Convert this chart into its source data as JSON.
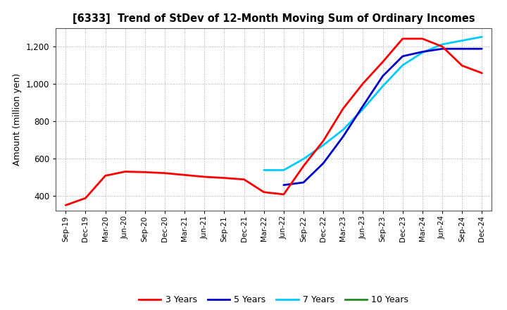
{
  "title": "[6333]  Trend of StDev of 12-Month Moving Sum of Ordinary Incomes",
  "ylabel": "Amount (million yen)",
  "background_color": "#ffffff",
  "grid_color": "#aaaaaa",
  "line_colors": {
    "3 Years": "#ff0000",
    "5 Years": "#0000cc",
    "7 Years": "#00ccff",
    "10 Years": "#228B22"
  },
  "ylim": [
    320,
    1300
  ],
  "yticks": [
    400,
    600,
    800,
    1000,
    1200
  ],
  "x_labels": [
    "Sep-19",
    "Dec-19",
    "Mar-20",
    "Jun-20",
    "Sep-20",
    "Dec-20",
    "Mar-21",
    "Jun-21",
    "Sep-21",
    "Dec-21",
    "Mar-22",
    "Jun-22",
    "Sep-22",
    "Dec-22",
    "Mar-23",
    "Jun-23",
    "Sep-23",
    "Dec-23",
    "Mar-24",
    "Jun-24",
    "Sep-24",
    "Dec-24"
  ],
  "series": {
    "3 Years": [
      350,
      388,
      508,
      530,
      527,
      522,
      512,
      502,
      496,
      488,
      420,
      408,
      560,
      695,
      868,
      1002,
      1118,
      1242,
      1242,
      1200,
      1098,
      1058
    ],
    "5 Years": [
      null,
      null,
      null,
      null,
      null,
      null,
      null,
      null,
      null,
      null,
      null,
      458,
      472,
      575,
      718,
      882,
      1042,
      1148,
      1172,
      1188,
      1188,
      1188
    ],
    "7 Years": [
      null,
      null,
      null,
      null,
      null,
      null,
      null,
      null,
      null,
      null,
      538,
      538,
      598,
      672,
      755,
      865,
      988,
      1100,
      1168,
      1212,
      1232,
      1252
    ],
    "10 Years": [
      null,
      null,
      null,
      null,
      null,
      null,
      null,
      null,
      null,
      null,
      null,
      null,
      null,
      null,
      null,
      null,
      null,
      null,
      null,
      null,
      null,
      null
    ]
  },
  "legend_entries": [
    "3 Years",
    "5 Years",
    "7 Years",
    "10 Years"
  ]
}
